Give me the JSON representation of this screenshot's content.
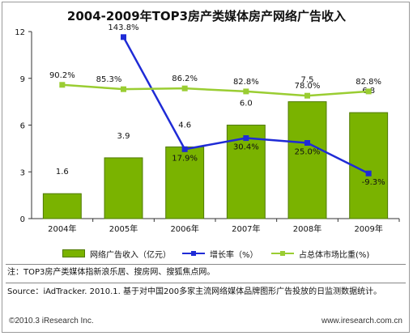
{
  "chart_data": {
    "type": "bar",
    "title": "2004-2009年TOP3房产类媒体房产网络广告收入",
    "categories": [
      "2004年",
      "2005年",
      "2006年",
      "2007年",
      "2008年",
      "2009年"
    ],
    "y_left": {
      "ticks": [
        "0",
        "3",
        "6",
        "9",
        "12"
      ],
      "ylim": [
        0,
        12
      ]
    },
    "series": [
      {
        "name": "网络广告收入（亿元）",
        "type": "bar",
        "values": [
          1.6,
          3.9,
          4.6,
          6.0,
          7.5,
          6.8
        ],
        "labels": [
          "1.6",
          "3.9",
          "4.6",
          "6.0",
          "7.5",
          "6.8"
        ],
        "color": "#7ab300"
      },
      {
        "name": "增长率（%）",
        "type": "line",
        "values": [
          null,
          143.8,
          17.9,
          30.4,
          25.0,
          -9.3
        ],
        "labels": [
          "",
          "143.8%",
          "17.9%",
          "30.4%",
          "25.0%",
          "-9.3%"
        ],
        "color": "#1f2bd6"
      },
      {
        "name": "占总体市场比重(%)",
        "type": "line",
        "values": [
          90.2,
          85.3,
          86.2,
          82.8,
          78.0,
          82.8
        ],
        "labels": [
          "90.2%",
          "85.3%",
          "86.2%",
          "82.8%",
          "78.0%",
          "82.8%"
        ],
        "color": "#9acd32"
      }
    ],
    "grid": false,
    "legend_position": "bottom"
  },
  "notes": {
    "note": "注：TOP3房产类媒体指新浪乐居、搜房网、搜狐焦点网。",
    "source": "Source：iAdTracker. 2010.1. 基于对中国200多家主流网络媒体品牌图形广告投放的日监测数据统计。"
  },
  "footer": {
    "copyright": "©2010.3 iResearch Inc.",
    "website": "www.iresearch.com.cn"
  }
}
